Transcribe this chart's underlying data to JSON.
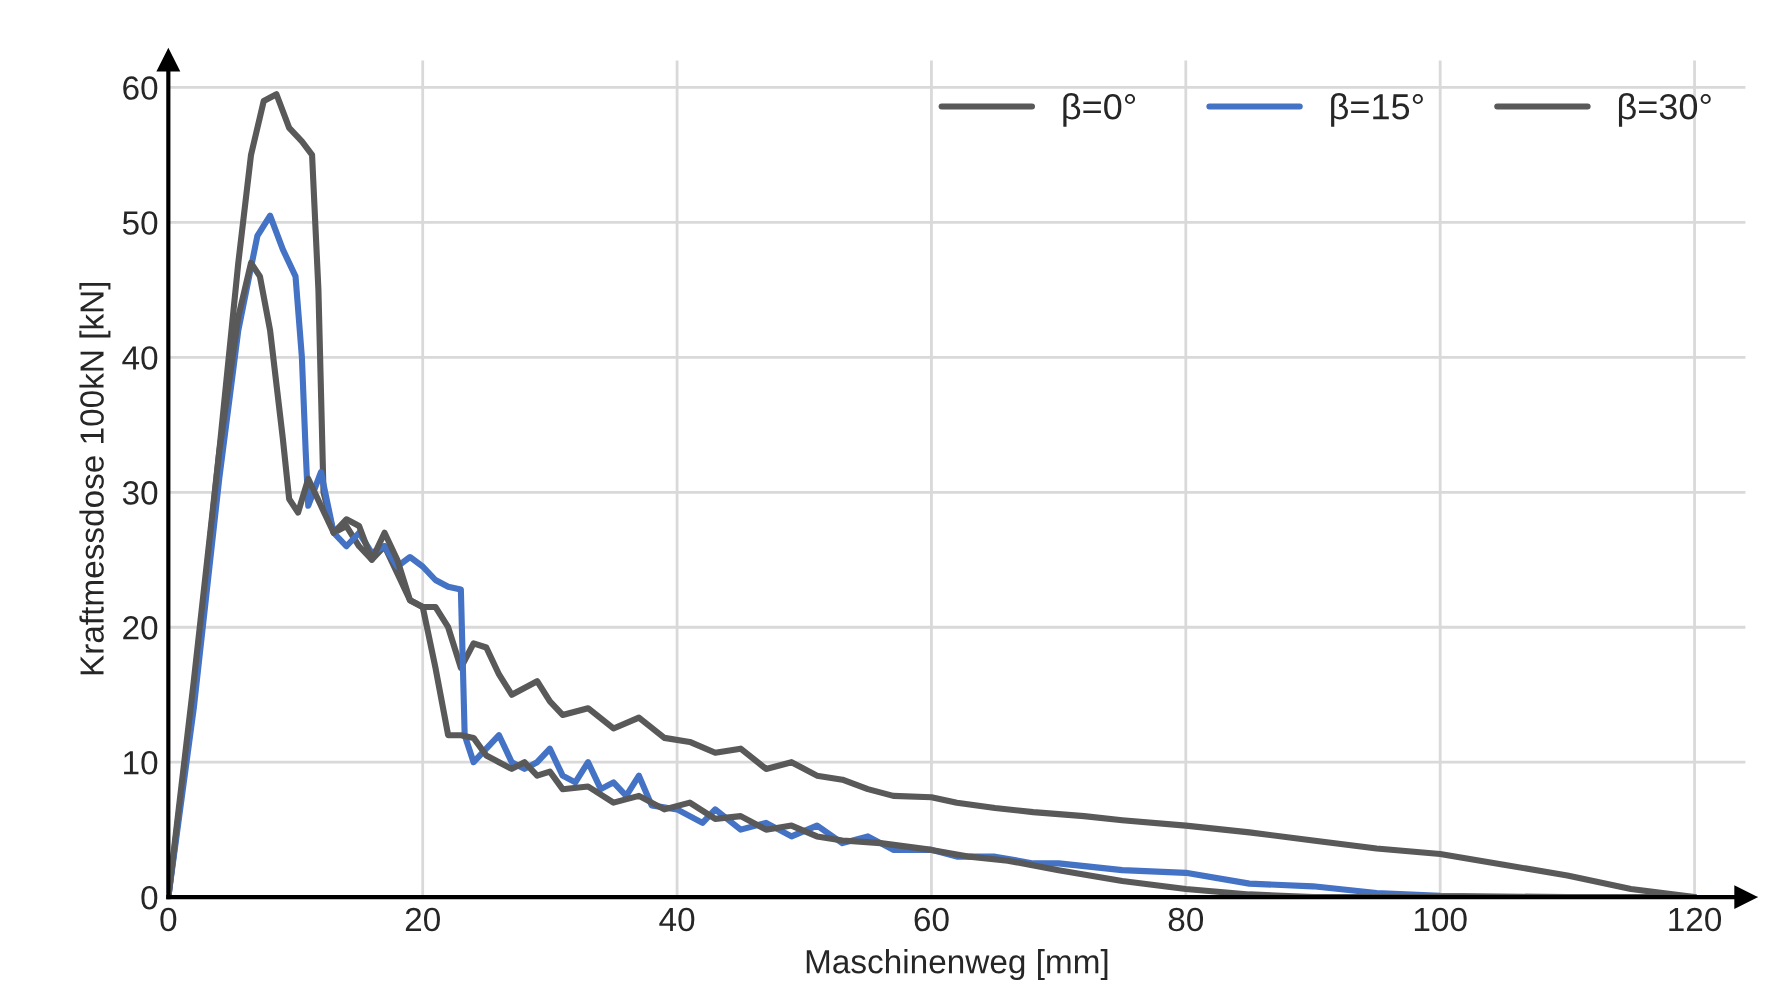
{
  "chart_data": {
    "type": "line",
    "xlabel": "Maschinenweg [mm]",
    "ylabel": "Kraftmessdose 100kN [kN]",
    "xlim": [
      0,
      124
    ],
    "ylim": [
      0,
      62
    ],
    "xticks": [
      0,
      20,
      40,
      60,
      80,
      100,
      120
    ],
    "yticks": [
      0,
      10,
      20,
      30,
      40,
      50,
      60
    ],
    "grid": true,
    "legend": "top right",
    "marker": "none",
    "line_style": "solid",
    "series": [
      {
        "name": "β=0°",
        "color": "#595959",
        "x": [
          0,
          2,
          4,
          5.5,
          6.5,
          7.5,
          8.5,
          9.5,
          10.5,
          11.3,
          11.8,
          12.2,
          13,
          14,
          15,
          16,
          17,
          18,
          19,
          20,
          21,
          22,
          23,
          24,
          25,
          26,
          27,
          28,
          29,
          30,
          31,
          33,
          35,
          37,
          39,
          41,
          43,
          45,
          47,
          49,
          51,
          53,
          55,
          57,
          60,
          62,
          65,
          68,
          72,
          75,
          80,
          85,
          90,
          95,
          100,
          105,
          110,
          115,
          120
        ],
        "values": [
          0,
          15,
          33,
          47,
          55,
          59,
          59.5,
          57,
          56,
          55,
          45,
          30,
          27,
          27.5,
          26,
          25,
          26,
          24,
          22,
          21.5,
          21.5,
          20,
          17,
          18.8,
          18.5,
          16.5,
          15,
          15.5,
          16,
          14.5,
          13.5,
          14,
          12.5,
          13.3,
          11.8,
          11.5,
          10.7,
          11,
          9.5,
          10,
          9,
          8.7,
          8,
          7.5,
          7.4,
          7,
          6.6,
          6.3,
          6,
          5.7,
          5.3,
          4.8,
          4.2,
          3.6,
          3.2,
          2.4,
          1.6,
          0.6,
          0
        ]
      },
      {
        "name": "β=15°",
        "color": "#4472c4",
        "x": [
          0,
          2,
          4,
          5.5,
          7,
          8,
          9,
          10,
          10.5,
          10.8,
          11,
          12,
          13,
          14,
          15,
          16,
          17,
          18,
          19,
          20,
          21,
          22,
          23,
          23.3,
          24,
          25,
          26,
          27,
          28,
          29,
          30,
          31,
          32,
          33,
          34,
          35,
          36,
          37,
          38,
          40,
          42,
          43,
          45,
          47,
          49,
          51,
          53,
          55,
          57,
          60,
          62,
          65,
          68,
          70,
          75,
          80,
          85,
          90,
          95,
          100,
          110,
          120
        ],
        "values": [
          0,
          14,
          31,
          42,
          49,
          50.5,
          48,
          46,
          40,
          33,
          29,
          31.5,
          27,
          26,
          27,
          25.5,
          26,
          24.5,
          25.2,
          24.5,
          23.5,
          23,
          22.8,
          12,
          10,
          11,
          12,
          10,
          9.5,
          10,
          11,
          9,
          8.5,
          10,
          8,
          8.5,
          7.5,
          9,
          6.8,
          6.5,
          5.5,
          6.5,
          5,
          5.5,
          4.5,
          5.3,
          4,
          4.5,
          3.5,
          3.5,
          3,
          3,
          2.5,
          2.5,
          2,
          1.8,
          1,
          0.8,
          0.3,
          0.1,
          0,
          0
        ]
      },
      {
        "name": "β=30°",
        "color": "#595959",
        "x": [
          0,
          2,
          4,
          5.5,
          6.5,
          7.2,
          8,
          9,
          9.5,
          10.2,
          11,
          12,
          13,
          14,
          15,
          16,
          17,
          18,
          19,
          20,
          21,
          22,
          23,
          24,
          25,
          26,
          27,
          28,
          29,
          30,
          31,
          33,
          35,
          37,
          39,
          41,
          43,
          45,
          47,
          49,
          51,
          53,
          56,
          60,
          63,
          66,
          70,
          75,
          80,
          85,
          90,
          120
        ],
        "values": [
          0,
          16,
          33,
          43,
          47,
          46,
          42,
          34,
          29.5,
          28.5,
          31,
          29,
          27,
          28,
          27.5,
          25,
          27,
          25,
          22,
          21.5,
          17,
          12,
          12,
          11.8,
          10.5,
          10,
          9.5,
          10,
          9,
          9.3,
          8,
          8.2,
          7,
          7.5,
          6.5,
          7,
          5.8,
          6,
          5,
          5.3,
          4.5,
          4.2,
          4,
          3.5,
          3,
          2.7,
          2,
          1.2,
          0.6,
          0.2,
          0,
          0
        ]
      }
    ]
  }
}
